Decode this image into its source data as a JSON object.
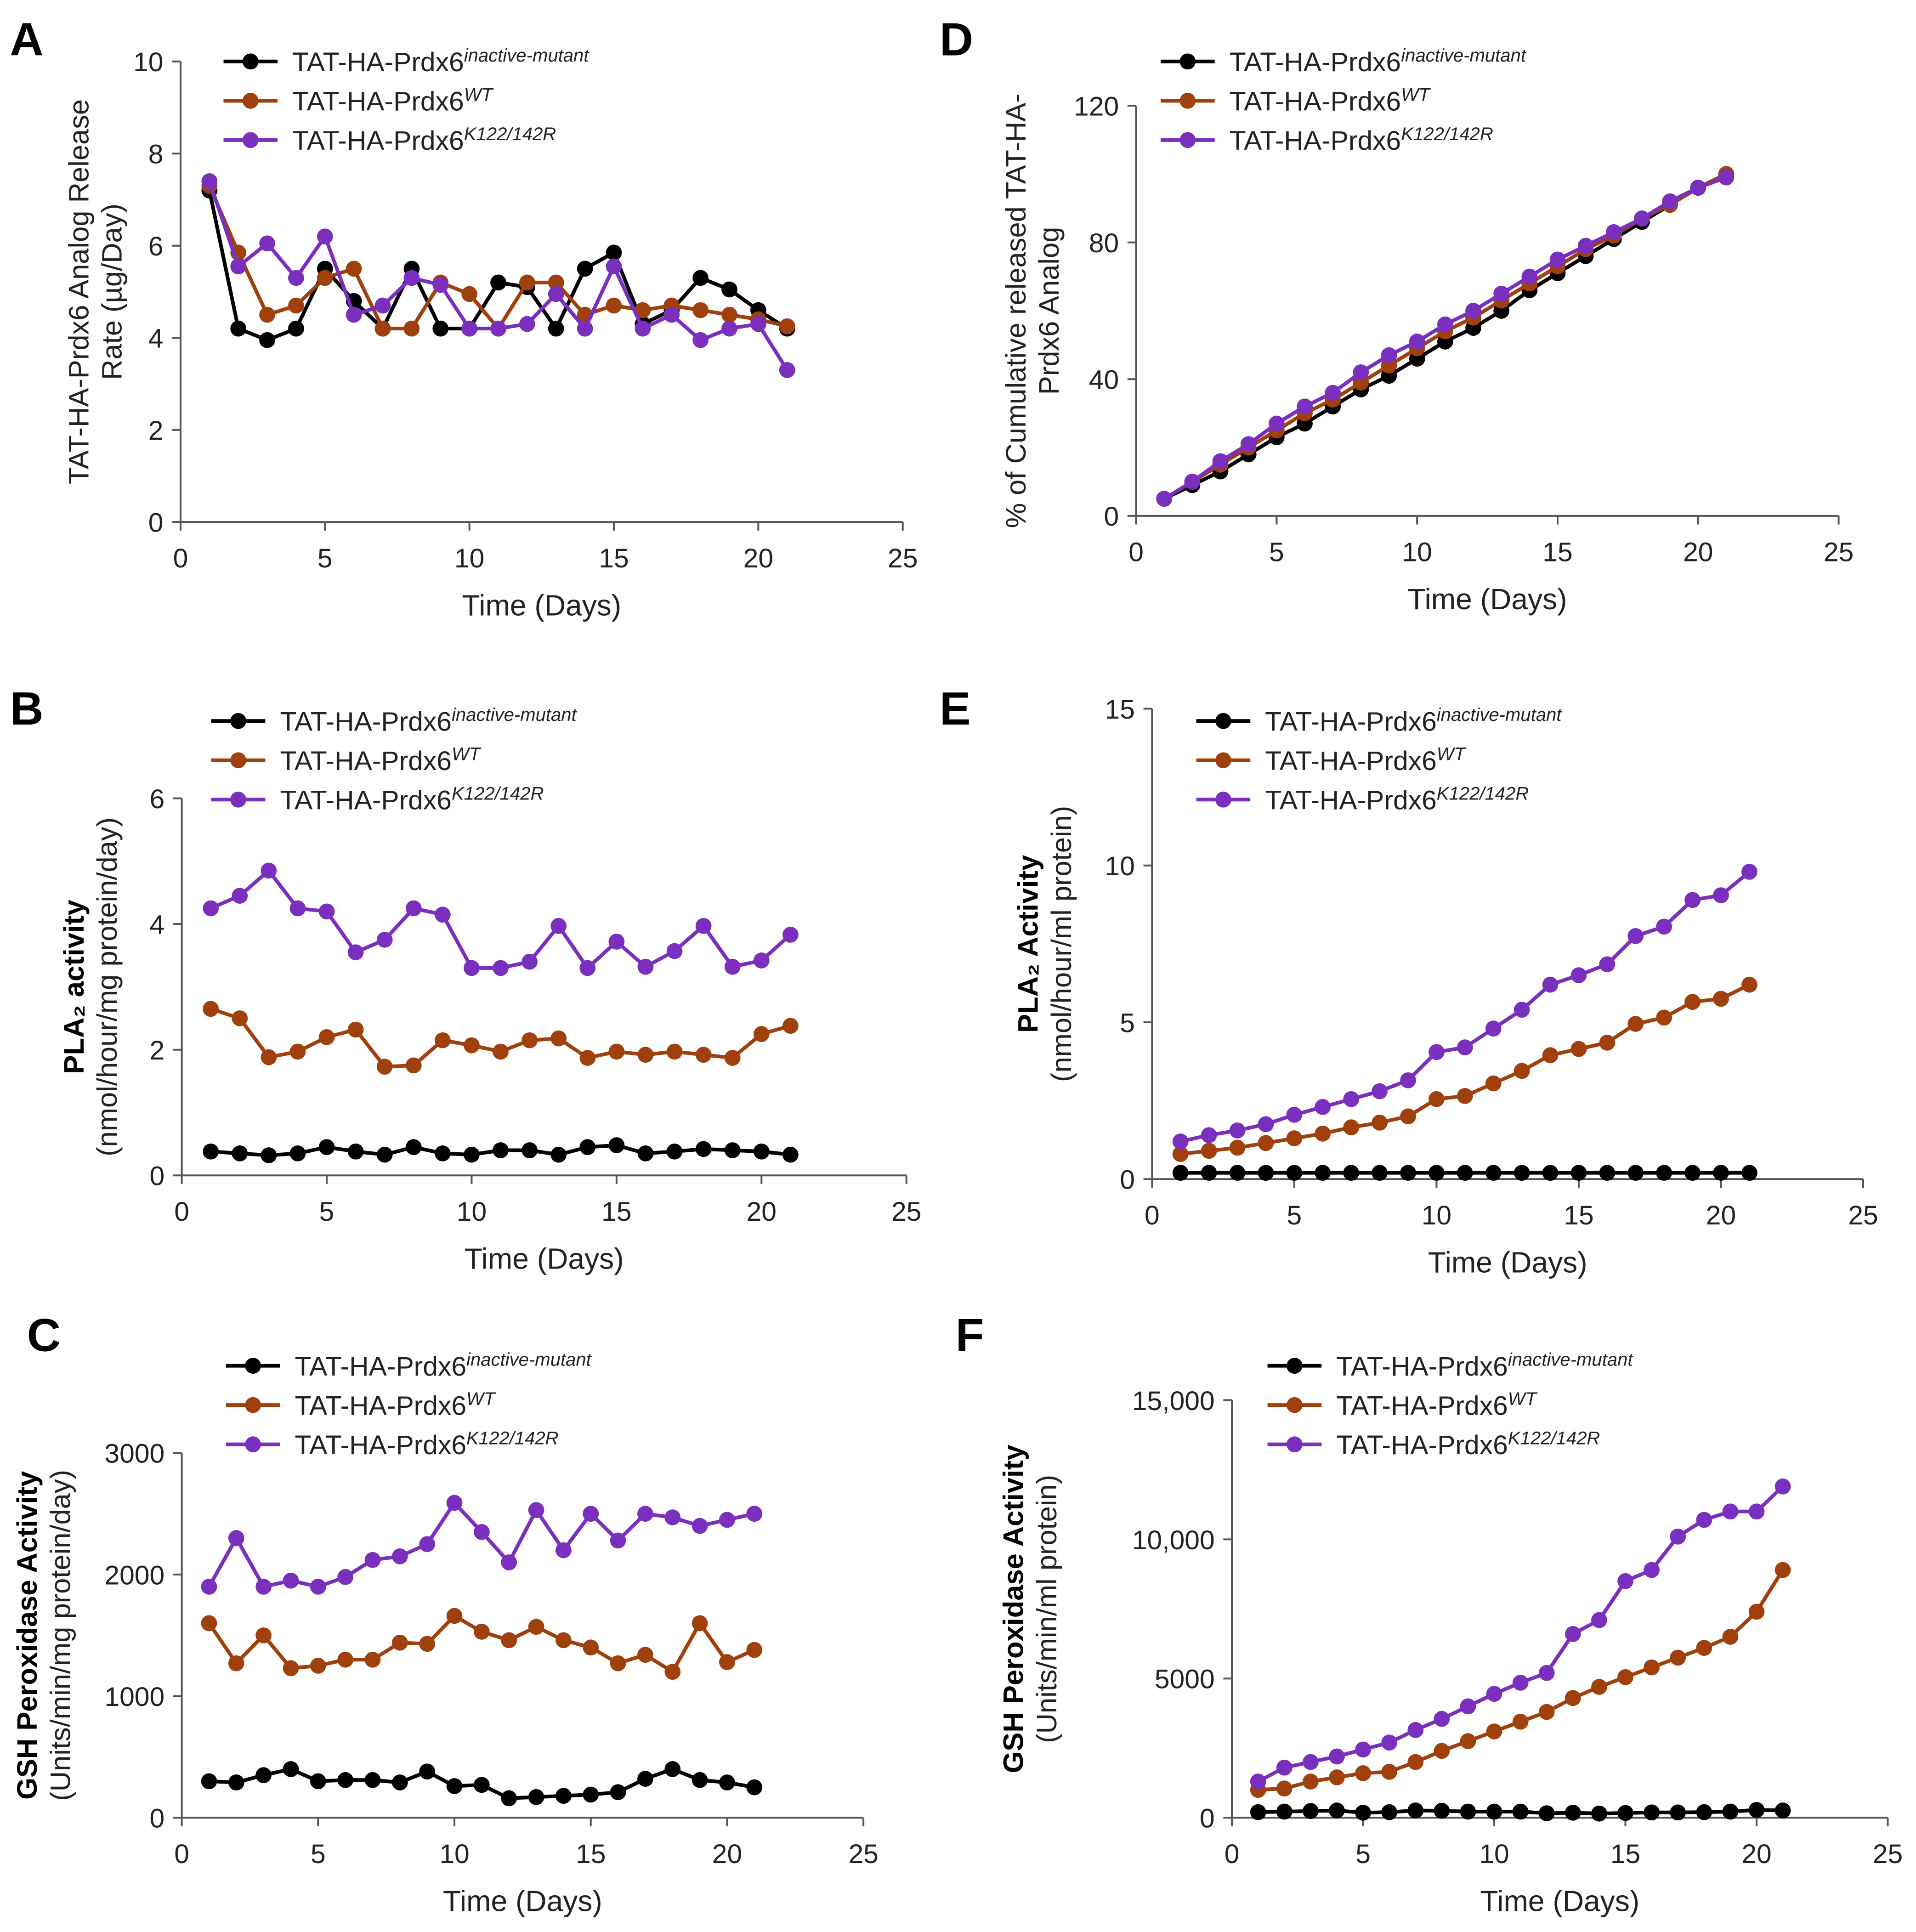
{
  "chart_data": [
    {
      "type": "line",
      "panel": "A",
      "ylabel": [
        "TAT-HA-Prdx6 Analog Release",
        "Rate (µg/Day)"
      ],
      "xlabel": "Time (Days)",
      "xlim": [
        0,
        25
      ],
      "xticks": [
        0,
        5,
        10,
        15,
        20,
        25
      ],
      "ylim": [
        0,
        10
      ],
      "yticks": [
        0,
        2,
        4,
        6,
        8,
        10
      ],
      "x": [
        1,
        2,
        3,
        4,
        5,
        6,
        7,
        8,
        9,
        10,
        11,
        12,
        13,
        14,
        15,
        16,
        17,
        18,
        19,
        20,
        21
      ],
      "series": [
        {
          "name": "TAT-HA-Prdx6",
          "name_sup": "inactive-mutant",
          "color": "#000000",
          "values": [
            7.2,
            4.2,
            3.95,
            4.2,
            5.5,
            4.8,
            4.2,
            5.5,
            4.2,
            4.2,
            5.2,
            5.1,
            4.2,
            5.5,
            5.85,
            4.3,
            4.6,
            5.3,
            5.05,
            4.6,
            4.2
          ]
        },
        {
          "name": "TAT-HA-Prdx6",
          "name_sup": "WT",
          "color": "#a0410d",
          "values": [
            7.3,
            5.85,
            4.5,
            4.7,
            5.3,
            5.5,
            4.2,
            4.2,
            5.2,
            4.95,
            4.2,
            5.2,
            5.2,
            4.5,
            4.7,
            4.6,
            4.7,
            4.6,
            4.5,
            4.4,
            4.25
          ]
        },
        {
          "name": "TAT-HA-Prdx6",
          "name_sup": "K122/142R",
          "color": "#7b2fbe",
          "values": [
            7.4,
            5.55,
            6.05,
            5.3,
            6.2,
            4.5,
            4.7,
            5.3,
            5.15,
            4.2,
            4.2,
            4.3,
            4.95,
            4.2,
            5.55,
            4.2,
            4.5,
            3.95,
            4.2,
            4.3,
            3.3
          ]
        }
      ]
    },
    {
      "type": "line",
      "panel": "D",
      "ylabel": [
        "% of Cumulative released TAT-HA-",
        "Prdx6 Analog"
      ],
      "xlabel": "Time (Days)",
      "xlim": [
        0,
        25
      ],
      "xticks": [
        0,
        5,
        10,
        15,
        20,
        25
      ],
      "ylim": [
        0,
        120
      ],
      "yticks": [
        0,
        40,
        80,
        120
      ],
      "x": [
        1,
        2,
        3,
        4,
        5,
        6,
        7,
        8,
        9,
        10,
        11,
        12,
        13,
        14,
        15,
        16,
        17,
        18,
        19,
        20,
        21
      ],
      "series": [
        {
          "name": "TAT-HA-Prdx6",
          "name_sup": "inactive-mutant",
          "color": "#000000",
          "values": [
            5,
            9,
            13,
            18,
            23,
            27,
            32,
            37,
            41,
            46,
            51,
            55,
            60,
            66,
            71,
            76,
            81,
            86,
            91,
            96,
            100
          ]
        },
        {
          "name": "TAT-HA-Prdx6",
          "name_sup": "WT",
          "color": "#a0410d",
          "values": [
            5,
            10,
            15,
            20,
            25,
            30,
            34,
            39,
            44,
            49,
            54,
            58,
            63,
            68,
            73,
            78,
            82,
            87,
            91,
            96,
            100
          ]
        },
        {
          "name": "TAT-HA-Prdx6",
          "name_sup": "K122/142R",
          "color": "#7b2fbe",
          "values": [
            5,
            10,
            16,
            21,
            27,
            32,
            36,
            42,
            47,
            51,
            56,
            60,
            65,
            70,
            75,
            79,
            83,
            87,
            92,
            96,
            99
          ]
        }
      ]
    },
    {
      "type": "line",
      "panel": "B",
      "ylabel": [
        "PLA₂ activity",
        "(nmol/hour/mg protein/day)"
      ],
      "xlabel": "Time  (Days)",
      "xlim": [
        0,
        25
      ],
      "xticks": [
        0,
        5,
        10,
        15,
        20,
        25
      ],
      "ylim": [
        0,
        6
      ],
      "yticks": [
        0,
        2,
        4,
        6
      ],
      "x": [
        1,
        2,
        3,
        4,
        5,
        6,
        7,
        8,
        9,
        10,
        11,
        12,
        13,
        14,
        15,
        16,
        17,
        18,
        19,
        20,
        21
      ],
      "series": [
        {
          "name": "TAT-HA-Prdx6",
          "name_sup": "inactive-mutant",
          "color": "#000000",
          "values": [
            0.38,
            0.35,
            0.32,
            0.35,
            0.45,
            0.38,
            0.33,
            0.45,
            0.35,
            0.33,
            0.4,
            0.4,
            0.33,
            0.45,
            0.48,
            0.35,
            0.38,
            0.42,
            0.4,
            0.38,
            0.33
          ]
        },
        {
          "name": "TAT-HA-Prdx6",
          "name_sup": "WT",
          "color": "#a0410d",
          "values": [
            2.65,
            2.5,
            1.88,
            1.97,
            2.2,
            2.32,
            1.73,
            1.75,
            2.15,
            2.07,
            1.97,
            2.15,
            2.18,
            1.87,
            1.97,
            1.92,
            1.97,
            1.92,
            1.87,
            2.25,
            2.38
          ]
        },
        {
          "name": "TAT-HA-Prdx6",
          "name_sup": "K122/142R",
          "color": "#7b2fbe",
          "values": [
            4.25,
            4.45,
            4.85,
            4.25,
            4.2,
            3.55,
            3.75,
            4.25,
            4.15,
            3.3,
            3.3,
            3.4,
            3.97,
            3.3,
            3.72,
            3.32,
            3.57,
            3.97,
            3.32,
            3.42,
            3.83
          ]
        }
      ]
    },
    {
      "type": "line",
      "panel": "E",
      "ylabel": [
        "PLA₂ Activity",
        "(nmol/hour/ml protein)"
      ],
      "xlabel": "Time (Days)",
      "xlim": [
        0,
        25
      ],
      "xticks": [
        0,
        5,
        10,
        15,
        20,
        25
      ],
      "ylim": [
        0,
        15
      ],
      "yticks": [
        0,
        5,
        10,
        15
      ],
      "x": [
        1,
        2,
        3,
        4,
        5,
        6,
        7,
        8,
        9,
        10,
        11,
        12,
        13,
        14,
        15,
        16,
        17,
        18,
        19,
        20,
        21
      ],
      "series": [
        {
          "name": "TAT-HA-Prdx6",
          "name_sup": "inactive-mutant",
          "color": "#000000",
          "values": [
            0.2,
            0.2,
            0.2,
            0.2,
            0.2,
            0.2,
            0.2,
            0.2,
            0.2,
            0.2,
            0.2,
            0.2,
            0.2,
            0.2,
            0.2,
            0.2,
            0.2,
            0.2,
            0.2,
            0.2,
            0.2
          ]
        },
        {
          "name": "TAT-HA-Prdx6",
          "name_sup": "WT",
          "color": "#a0410d",
          "values": [
            0.8,
            0.9,
            1.0,
            1.15,
            1.3,
            1.45,
            1.65,
            1.8,
            2.0,
            2.55,
            2.65,
            3.05,
            3.45,
            3.95,
            4.15,
            4.35,
            4.95,
            5.15,
            5.65,
            5.75,
            6.2
          ]
        },
        {
          "name": "TAT-HA-Prdx6",
          "name_sup": "K122/142R",
          "color": "#7b2fbe",
          "values": [
            1.2,
            1.4,
            1.55,
            1.75,
            2.05,
            2.3,
            2.55,
            2.8,
            3.15,
            4.05,
            4.2,
            4.8,
            5.4,
            6.2,
            6.5,
            6.85,
            7.75,
            8.05,
            8.9,
            9.05,
            9.8
          ]
        }
      ]
    },
    {
      "type": "line",
      "panel": "C",
      "ylabel": [
        "GSH Peroxidase Activity",
        "(Units/min/mg protein/day)"
      ],
      "xlabel": "Time (Days)",
      "xlim": [
        0,
        25
      ],
      "xticks": [
        0,
        5,
        10,
        15,
        20,
        25
      ],
      "ylim": [
        0,
        3000
      ],
      "yticks": [
        0,
        1000,
        2000,
        3000
      ],
      "x": [
        1,
        2,
        3,
        4,
        5,
        6,
        7,
        8,
        9,
        10,
        11,
        12,
        13,
        14,
        15,
        16,
        17,
        18,
        19,
        20,
        21
      ],
      "series": [
        {
          "name": "TAT-HA-Prdx6",
          "name_sup": "inactive-mutant",
          "color": "#000000",
          "values": [
            300,
            290,
            350,
            400,
            300,
            310,
            310,
            290,
            380,
            260,
            270,
            160,
            170,
            180,
            190,
            210,
            320,
            400,
            310,
            290,
            250
          ]
        },
        {
          "name": "TAT-HA-Prdx6",
          "name_sup": "WT",
          "color": "#a0410d",
          "values": [
            1600,
            1270,
            1500,
            1230,
            1250,
            1300,
            1300,
            1440,
            1430,
            1660,
            1530,
            1460,
            1570,
            1460,
            1400,
            1270,
            1340,
            1200,
            1600,
            1280,
            1380
          ]
        },
        {
          "name": "TAT-HA-Prdx6",
          "name_sup": "K122/142R",
          "color": "#7b2fbe",
          "values": [
            1900,
            2300,
            1900,
            1950,
            1900,
            1980,
            2120,
            2150,
            2250,
            2590,
            2350,
            2100,
            2530,
            2200,
            2500,
            2280,
            2500,
            2470,
            2400,
            2450,
            2500
          ]
        }
      ]
    },
    {
      "type": "line",
      "panel": "F",
      "ylabel": [
        "GSH Peroxidase Activity",
        "(Units/min/ml protein)"
      ],
      "xlabel": "Time (Days)",
      "xlim": [
        0,
        25
      ],
      "xticks": [
        0,
        5,
        10,
        15,
        20,
        25
      ],
      "ylim": [
        0,
        15000
      ],
      "yticks": [
        0,
        5000,
        {
          "value": 10000,
          "label": "10,000"
        },
        {
          "value": 15000,
          "label": "15,000"
        }
      ],
      "x": [
        1,
        2,
        3,
        4,
        5,
        6,
        7,
        8,
        9,
        10,
        11,
        12,
        13,
        14,
        15,
        16,
        17,
        18,
        19,
        20,
        21
      ],
      "series": [
        {
          "name": "TAT-HA-Prdx6",
          "name_sup": "inactive-mutant",
          "color": "#000000",
          "values": [
            200,
            220,
            240,
            260,
            180,
            200,
            260,
            250,
            220,
            220,
            220,
            160,
            180,
            150,
            170,
            190,
            190,
            200,
            220,
            280,
            260
          ]
        },
        {
          "name": "TAT-HA-Prdx6",
          "name_sup": "WT",
          "color": "#a0410d",
          "values": [
            1000,
            1050,
            1300,
            1450,
            1600,
            1650,
            2000,
            2400,
            2750,
            3100,
            3450,
            3800,
            4300,
            4700,
            5050,
            5400,
            5750,
            6100,
            6500,
            7400,
            8900
          ]
        },
        {
          "name": "TAT-HA-Prdx6",
          "name_sup": "K122/142R",
          "color": "#7b2fbe",
          "values": [
            1300,
            1800,
            2000,
            2200,
            2450,
            2700,
            3150,
            3550,
            4000,
            4450,
            4850,
            5200,
            6600,
            7100,
            8500,
            8900,
            10100,
            10700,
            11000,
            11000,
            11900
          ]
        }
      ]
    }
  ]
}
